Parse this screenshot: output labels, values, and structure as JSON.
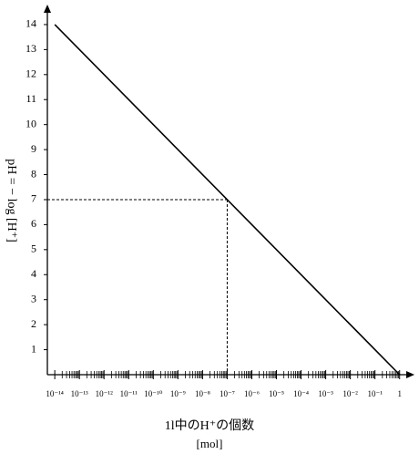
{
  "chart_data": {
    "type": "line",
    "log_x": true,
    "y_label": "pH = − log [H⁺]",
    "x_label": "1l中のH⁺の個数",
    "x_unit": "[mol]",
    "x": [
      1e-14,
      1
    ],
    "series": [
      {
        "color": "#000000",
        "values": [
          14,
          0
        ]
      }
    ],
    "reference": {
      "x": 1e-07,
      "y": 7
    },
    "xlim": [
      5e-15,
      4
    ],
    "ylim": [
      0,
      14.8
    ],
    "xticks": [
      {
        "value": 1e-14,
        "label": "10⁻¹⁴"
      },
      {
        "value": 1e-13,
        "label": "10⁻¹³"
      },
      {
        "value": 1e-12,
        "label": "10⁻¹²"
      },
      {
        "value": 1e-11,
        "label": "10⁻¹¹"
      },
      {
        "value": 1e-10,
        "label": "10⁻¹⁰"
      },
      {
        "value": 1e-09,
        "label": "10⁻⁹"
      },
      {
        "value": 1e-08,
        "label": "10⁻⁸"
      },
      {
        "value": 1e-07,
        "label": "10⁻⁷"
      },
      {
        "value": 1e-06,
        "label": "10⁻⁶"
      },
      {
        "value": 1e-05,
        "label": "10⁻⁵"
      },
      {
        "value": 0.0001,
        "label": "10⁻⁴"
      },
      {
        "value": 0.001,
        "label": "10⁻³"
      },
      {
        "value": 0.01,
        "label": "10⁻²"
      },
      {
        "value": 0.1,
        "label": "10⁻¹"
      },
      1
    ],
    "yticks": [
      1,
      2,
      3,
      4,
      5,
      6,
      7,
      8,
      9,
      10,
      11,
      12,
      13,
      14
    ]
  }
}
